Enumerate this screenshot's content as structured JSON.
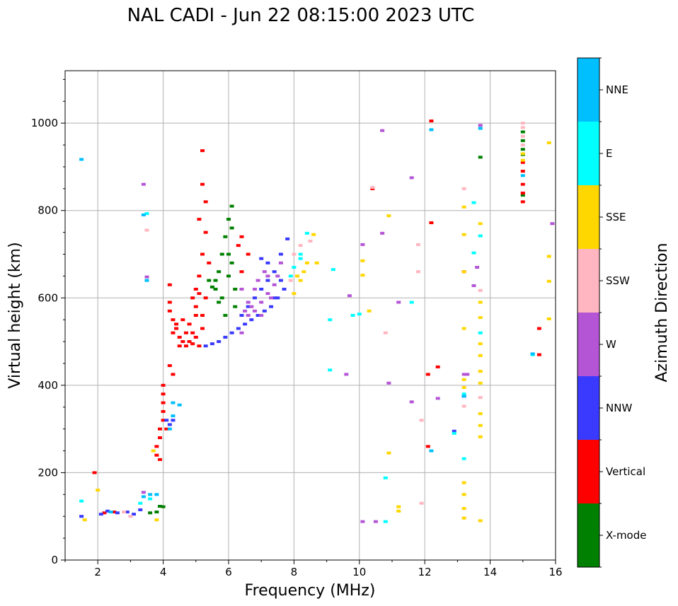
{
  "chart_data": {
    "type": "scatter",
    "title": "NAL CADI - Jun 22 08:15:00 2023 UTC",
    "xlabel": "Frequency (MHz)",
    "ylabel": "Virtual height (km)",
    "xlim": [
      1,
      16
    ],
    "ylim": [
      0,
      1120
    ],
    "xticks": [
      2,
      4,
      6,
      8,
      10,
      12,
      14,
      16
    ],
    "yticks": [
      0,
      200,
      400,
      600,
      800,
      1000
    ],
    "grid": true,
    "colorbar": {
      "title": "Azimuth Direction",
      "categories": [
        {
          "name": "X-mode",
          "color": "#008000"
        },
        {
          "name": "Vertical",
          "color": "#ff0000"
        },
        {
          "name": "NNW",
          "color": "#3a3aff"
        },
        {
          "name": "W",
          "color": "#b455d6"
        },
        {
          "name": "SSW",
          "color": "#ffb6c1"
        },
        {
          "name": "SSE",
          "color": "#ffd700"
        },
        {
          "name": "E",
          "color": "#00ffff"
        },
        {
          "name": "NNE",
          "color": "#00bfff"
        }
      ]
    },
    "series": [
      {
        "name": "X-mode",
        "points": [
          [
            3.9,
            123
          ],
          [
            4.0,
            122
          ],
          [
            5.5,
            625
          ],
          [
            5.6,
            640
          ],
          [
            5.7,
            660
          ],
          [
            5.8,
            600
          ],
          [
            5.9,
            740
          ],
          [
            6.0,
            700
          ],
          [
            6.0,
            780
          ],
          [
            6.1,
            760
          ],
          [
            6.1,
            810
          ],
          [
            6.2,
            580
          ],
          [
            5.6,
            620
          ],
          [
            5.7,
            590
          ],
          [
            5.4,
            640
          ],
          [
            5.8,
            700
          ],
          [
            6.0,
            650
          ],
          [
            6.2,
            620
          ],
          [
            5.9,
            560
          ],
          [
            6.1,
            680
          ],
          [
            13.7,
            922
          ],
          [
            15.0,
            980
          ],
          [
            15.0,
            960
          ],
          [
            15.0,
            940
          ],
          [
            15.0,
            928
          ],
          [
            15.0,
            835
          ],
          [
            3.6,
            108
          ],
          [
            3.8,
            110
          ]
        ]
      },
      {
        "name": "Vertical",
        "points": [
          [
            1.9,
            200
          ],
          [
            4.2,
            630
          ],
          [
            4.2,
            590
          ],
          [
            4.2,
            570
          ],
          [
            4.3,
            550
          ],
          [
            4.4,
            530
          ],
          [
            4.5,
            510
          ],
          [
            4.6,
            500
          ],
          [
            4.7,
            490
          ],
          [
            4.8,
            500
          ],
          [
            4.9,
            520
          ],
          [
            5.0,
            510
          ],
          [
            5.1,
            490
          ],
          [
            4.4,
            540
          ],
          [
            4.6,
            550
          ],
          [
            4.8,
            540
          ],
          [
            5.0,
            560
          ],
          [
            5.2,
            530
          ],
          [
            4.3,
            520
          ],
          [
            4.5,
            490
          ],
          [
            4.7,
            520
          ],
          [
            4.9,
            495
          ],
          [
            5.2,
            560
          ],
          [
            5.1,
            650
          ],
          [
            5.0,
            620
          ],
          [
            5.2,
            700
          ],
          [
            5.3,
            750
          ],
          [
            5.1,
            780
          ],
          [
            5.3,
            820
          ],
          [
            5.2,
            860
          ],
          [
            5.2,
            937
          ],
          [
            5.4,
            680
          ],
          [
            5.3,
            600
          ],
          [
            5.0,
            580
          ],
          [
            4.9,
            600
          ],
          [
            5.1,
            610
          ],
          [
            6.4,
            740
          ],
          [
            6.6,
            700
          ],
          [
            6.4,
            660
          ],
          [
            6.3,
            720
          ],
          [
            4.0,
            400
          ],
          [
            4.0,
            380
          ],
          [
            4.0,
            360
          ],
          [
            4.0,
            340
          ],
          [
            4.0,
            320
          ],
          [
            3.9,
            300
          ],
          [
            3.9,
            280
          ],
          [
            3.8,
            260
          ],
          [
            3.8,
            240
          ],
          [
            4.3,
            425
          ],
          [
            4.2,
            445
          ],
          [
            3.9,
            230
          ],
          [
            4.1,
            300
          ],
          [
            10.4,
            850
          ],
          [
            12.2,
            1005
          ],
          [
            12.2,
            772
          ],
          [
            12.1,
            260
          ],
          [
            12.1,
            425
          ],
          [
            12.4,
            442
          ],
          [
            15.0,
            910
          ],
          [
            15.0,
            890
          ],
          [
            15.0,
            860
          ],
          [
            15.0,
            840
          ],
          [
            15.0,
            820
          ],
          [
            15.5,
            530
          ],
          [
            15.5,
            470
          ],
          [
            13.2,
            660
          ],
          [
            2.5,
            110
          ],
          [
            2.2,
            108
          ]
        ]
      },
      {
        "name": "NNW",
        "points": [
          [
            5.3,
            490
          ],
          [
            5.5,
            495
          ],
          [
            5.7,
            500
          ],
          [
            5.9,
            510
          ],
          [
            6.1,
            520
          ],
          [
            6.3,
            530
          ],
          [
            6.5,
            540
          ],
          [
            6.7,
            550
          ],
          [
            6.9,
            560
          ],
          [
            7.1,
            570
          ],
          [
            7.3,
            580
          ],
          [
            7.5,
            600
          ],
          [
            7.7,
            620
          ],
          [
            7.6,
            640
          ],
          [
            7.4,
            660
          ],
          [
            7.2,
            680
          ],
          [
            7.0,
            690
          ],
          [
            6.8,
            600
          ],
          [
            7.0,
            620
          ],
          [
            7.2,
            640
          ],
          [
            6.6,
            580
          ],
          [
            6.4,
            560
          ],
          [
            7.4,
            600
          ],
          [
            7.8,
            735
          ],
          [
            7.6,
            700
          ],
          [
            4.2,
            310
          ],
          [
            4.3,
            320
          ],
          [
            4.1,
            320
          ],
          [
            12.9,
            295
          ],
          [
            13.2,
            375
          ],
          [
            2.1,
            105
          ],
          [
            2.3,
            112
          ],
          [
            2.6,
            108
          ],
          [
            2.9,
            110
          ],
          [
            3.1,
            105
          ],
          [
            3.3,
            115
          ],
          [
            1.5,
            100
          ]
        ]
      },
      {
        "name": "W",
        "points": [
          [
            6.6,
            560
          ],
          [
            6.8,
            570
          ],
          [
            7.0,
            590
          ],
          [
            7.2,
            610
          ],
          [
            7.4,
            630
          ],
          [
            6.9,
            640
          ],
          [
            7.1,
            660
          ],
          [
            6.7,
            580
          ],
          [
            6.5,
            570
          ],
          [
            7.3,
            600
          ],
          [
            7.0,
            560
          ],
          [
            7.2,
            650
          ],
          [
            6.6,
            590
          ],
          [
            6.8,
            620
          ],
          [
            6.4,
            620
          ],
          [
            6.4,
            520
          ],
          [
            7.5,
            650
          ],
          [
            7.6,
            680
          ],
          [
            10.1,
            722
          ],
          [
            10.7,
            983
          ],
          [
            10.7,
            748
          ],
          [
            10.9,
            405
          ],
          [
            11.6,
            362
          ],
          [
            11.2,
            590
          ],
          [
            9.7,
            605
          ],
          [
            9.6,
            425
          ],
          [
            10.1,
            88
          ],
          [
            10.5,
            88
          ],
          [
            11.6,
            875
          ],
          [
            12.4,
            370
          ],
          [
            13.2,
            425
          ],
          [
            13.3,
            425
          ],
          [
            13.6,
            670
          ],
          [
            13.5,
            628
          ],
          [
            13.7,
            995
          ],
          [
            15.9,
            770
          ],
          [
            3.4,
            860
          ],
          [
            3.5,
            648
          ],
          [
            3.4,
            155
          ]
        ]
      },
      {
        "name": "SSW",
        "points": [
          [
            8.0,
            700
          ],
          [
            8.2,
            720
          ],
          [
            8.5,
            730
          ],
          [
            7.9,
            640
          ],
          [
            10.8,
            520
          ],
          [
            11.8,
            660
          ],
          [
            11.8,
            722
          ],
          [
            11.9,
            320
          ],
          [
            11.9,
            130
          ],
          [
            13.2,
            850
          ],
          [
            13.2,
            352
          ],
          [
            13.7,
            617
          ],
          [
            13.7,
            372
          ],
          [
            15.0,
            1000
          ],
          [
            15.0,
            990
          ],
          [
            15.0,
            970
          ],
          [
            15.0,
            950
          ],
          [
            10.4,
            853
          ],
          [
            3.5,
            755
          ],
          [
            2.8,
            110
          ],
          [
            3.0,
            100
          ]
        ]
      },
      {
        "name": "SSE",
        "points": [
          [
            8.2,
            640
          ],
          [
            8.3,
            660
          ],
          [
            8.4,
            680
          ],
          [
            8.6,
            745
          ],
          [
            8.7,
            680
          ],
          [
            8.1,
            650
          ],
          [
            8.0,
            610
          ],
          [
            10.1,
            685
          ],
          [
            10.1,
            652
          ],
          [
            10.3,
            570
          ],
          [
            10.9,
            788
          ],
          [
            10.9,
            245
          ],
          [
            11.2,
            122
          ],
          [
            11.2,
            112
          ],
          [
            13.2,
            808
          ],
          [
            13.2,
            745
          ],
          [
            13.2,
            660
          ],
          [
            13.2,
            530
          ],
          [
            13.2,
            413
          ],
          [
            13.2,
            395
          ],
          [
            13.2,
            177
          ],
          [
            13.2,
            150
          ],
          [
            13.2,
            118
          ],
          [
            13.2,
            96
          ],
          [
            13.7,
            770
          ],
          [
            13.7,
            590
          ],
          [
            13.7,
            555
          ],
          [
            13.7,
            495
          ],
          [
            13.7,
            468
          ],
          [
            13.7,
            432
          ],
          [
            13.7,
            405
          ],
          [
            13.7,
            335
          ],
          [
            13.7,
            308
          ],
          [
            13.7,
            282
          ],
          [
            13.7,
            90
          ],
          [
            15.0,
            930
          ],
          [
            15.0,
            915
          ],
          [
            15.8,
            955
          ],
          [
            15.8,
            695
          ],
          [
            15.8,
            638
          ],
          [
            15.8,
            552
          ],
          [
            3.7,
            250
          ],
          [
            3.8,
            92
          ],
          [
            2.0,
            160
          ],
          [
            1.6,
            92
          ]
        ]
      },
      {
        "name": "E",
        "points": [
          [
            7.9,
            650
          ],
          [
            8.0,
            670
          ],
          [
            8.2,
            700
          ],
          [
            8.4,
            748
          ],
          [
            8.2,
            690
          ],
          [
            9.2,
            665
          ],
          [
            9.1,
            550
          ],
          [
            9.1,
            435
          ],
          [
            9.8,
            560
          ],
          [
            10.0,
            563
          ],
          [
            10.8,
            188
          ],
          [
            10.8,
            88
          ],
          [
            11.6,
            590
          ],
          [
            12.9,
            290
          ],
          [
            13.2,
            232
          ],
          [
            13.5,
            818
          ],
          [
            13.7,
            742
          ],
          [
            13.5,
            703
          ],
          [
            13.7,
            520
          ],
          [
            13.2,
            380
          ],
          [
            15.3,
            470
          ],
          [
            3.5,
            793
          ],
          [
            3.5,
            640
          ],
          [
            3.3,
            130
          ],
          [
            3.6,
            140
          ],
          [
            1.5,
            135
          ]
        ]
      },
      {
        "name": "NNE",
        "points": [
          [
            1.5,
            917
          ],
          [
            3.4,
            790
          ],
          [
            3.5,
            640
          ],
          [
            3.6,
            150
          ],
          [
            3.8,
            150
          ],
          [
            4.2,
            300
          ],
          [
            4.3,
            330
          ],
          [
            4.3,
            360
          ],
          [
            4.5,
            355
          ],
          [
            12.2,
            985
          ],
          [
            12.2,
            250
          ],
          [
            13.2,
            375
          ],
          [
            13.7,
            988
          ],
          [
            15.0,
            880
          ],
          [
            15.3,
            472
          ],
          [
            2.4,
            110
          ],
          [
            3.4,
            145
          ]
        ]
      }
    ]
  }
}
